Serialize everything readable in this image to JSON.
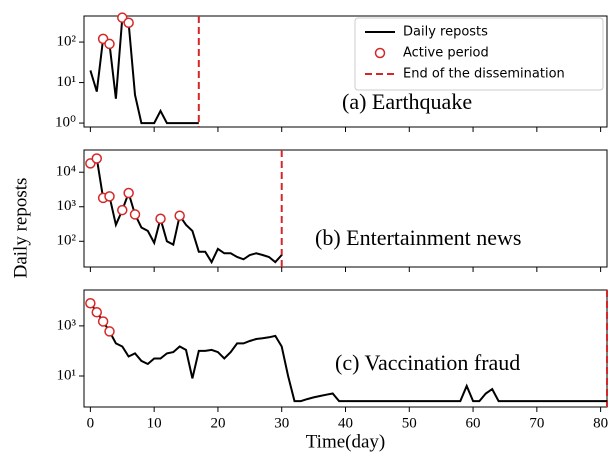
{
  "chart_data": [
    {
      "type": "line",
      "annotation": "(a) Earthquake",
      "log_y": true,
      "ylim": [
        0.8,
        440
      ],
      "yticks": [
        {
          "value": 1,
          "label": "10⁰"
        },
        {
          "value": 10,
          "label": "10¹"
        },
        {
          "value": 100,
          "label": "10²"
        }
      ],
      "xlim": [
        -1,
        81
      ],
      "x": [
        0,
        1,
        2,
        3,
        4,
        5,
        6,
        7,
        8,
        9,
        10,
        11,
        12,
        13,
        14,
        15,
        16,
        17
      ],
      "series": [
        {
          "name": "Daily reposts",
          "color": "#000000",
          "values": [
            20,
            6,
            120,
            90,
            4,
            400,
            300,
            5,
            1,
            1,
            1,
            2,
            1,
            1,
            1,
            1,
            1,
            1
          ]
        },
        {
          "name": "Active period",
          "color": "#d62728",
          "x": [
            2,
            3,
            5,
            6
          ],
          "values": [
            120,
            90,
            400,
            300
          ]
        }
      ],
      "end_line": {
        "name": "End of the dissemination",
        "color": "#d62728",
        "x": 17
      },
      "legend": "upper right"
    },
    {
      "type": "line",
      "annotation": "(b) Entertainment news",
      "log_y": true,
      "ylim": [
        18,
        44000
      ],
      "ylabel": "Daily reposts",
      "yticks": [
        {
          "value": 100,
          "label": "10²"
        },
        {
          "value": 1000,
          "label": "10³"
        },
        {
          "value": 10000,
          "label": "10⁴"
        }
      ],
      "xlim": [
        -1,
        81
      ],
      "x": [
        0,
        1,
        2,
        3,
        4,
        5,
        6,
        7,
        8,
        9,
        10,
        11,
        12,
        13,
        14,
        15,
        16,
        17,
        18,
        19,
        20,
        21,
        22,
        23,
        24,
        25,
        26,
        27,
        28,
        29,
        30
      ],
      "series": [
        {
          "color": "#000000",
          "values": [
            18000,
            25000,
            1800,
            2000,
            300,
            800,
            2500,
            600,
            250,
            200,
            90,
            450,
            100,
            80,
            550,
            300,
            200,
            50,
            50,
            25,
            60,
            45,
            45,
            35,
            30,
            40,
            45,
            40,
            35,
            25,
            40
          ]
        },
        {
          "color": "#d62728",
          "x": [
            0,
            1,
            2,
            3,
            5,
            6,
            7,
            11,
            14
          ],
          "values": [
            18000,
            25000,
            1800,
            2000,
            800,
            2500,
            600,
            450,
            550
          ]
        }
      ],
      "end_line": {
        "color": "#d62728",
        "x": 30
      }
    },
    {
      "type": "line",
      "annotation": "(c) Vaccination fraud",
      "log_y": true,
      "ylim": [
        0.58,
        27000
      ],
      "xlabel": "Time(day)",
      "yticks": [
        {
          "value": 10,
          "label": "10¹"
        },
        {
          "value": 1000,
          "label": "10³"
        }
      ],
      "xlim": [
        -1,
        81
      ],
      "xticks": [
        0,
        10,
        20,
        30,
        40,
        50,
        60,
        70,
        80
      ],
      "x": [
        0,
        1,
        2,
        3,
        4,
        5,
        6,
        7,
        8,
        9,
        10,
        11,
        12,
        13,
        14,
        15,
        16,
        17,
        18,
        19,
        20,
        21,
        22,
        23,
        24,
        25,
        26,
        27,
        28,
        29,
        30,
        31,
        32,
        33,
        34,
        35,
        36,
        37,
        38,
        39,
        40,
        41,
        42,
        43,
        44,
        45,
        46,
        47,
        48,
        49,
        50,
        51,
        52,
        53,
        54,
        55,
        56,
        57,
        58,
        59,
        60,
        61,
        62,
        63,
        64,
        65,
        66,
        67,
        68,
        69,
        70,
        71,
        72,
        73,
        74,
        75,
        76,
        77,
        78,
        79,
        80,
        81
      ],
      "series": [
        {
          "color": "#000000",
          "values": [
            8000,
            3500,
            1500,
            600,
            200,
            150,
            60,
            80,
            40,
            30,
            50,
            50,
            80,
            90,
            150,
            110,
            8,
            100,
            100,
            110,
            90,
            50,
            90,
            200,
            200,
            250,
            300,
            320,
            350,
            400,
            150,
            10,
            1,
            1,
            1.2,
            1.4,
            1.6,
            1.8,
            2,
            1,
            1,
            1,
            1,
            1,
            1,
            1,
            1,
            1,
            1,
            1,
            1,
            1,
            1,
            1,
            1,
            1,
            1,
            1,
            1,
            4,
            1,
            1,
            2,
            3,
            1,
            1,
            1,
            1,
            1,
            1,
            1,
            1,
            1,
            1,
            1,
            1,
            1,
            1,
            1,
            1,
            1,
            1
          ]
        },
        {
          "color": "#d62728",
          "x": [
            0,
            1,
            2,
            3
          ],
          "values": [
            8000,
            3500,
            1500,
            600
          ]
        }
      ],
      "end_line": {
        "color": "#d62728",
        "x": 81
      }
    }
  ]
}
